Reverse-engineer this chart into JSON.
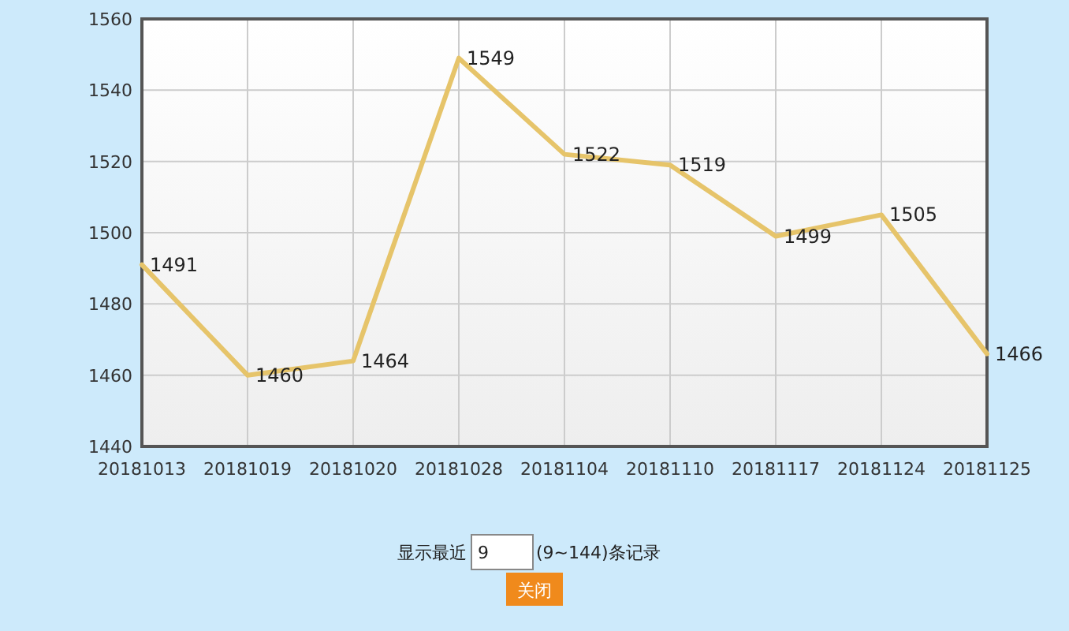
{
  "chart_data": {
    "type": "line",
    "categories": [
      "20181013",
      "20181019",
      "20181020",
      "20181028",
      "20181104",
      "20181110",
      "20181117",
      "20181124",
      "20181125"
    ],
    "values": [
      1491,
      1460,
      1464,
      1549,
      1522,
      1519,
      1499,
      1505,
      1466
    ],
    "color": "#e6c46a",
    "ylim": [
      1440,
      1560
    ],
    "yticks": [
      1440,
      1460,
      1480,
      1500,
      1520,
      1540,
      1560
    ],
    "grid": true,
    "data_labels": true,
    "annotations": [
      "显示最近",
      "9",
      "(9~144)条记录",
      "关闭"
    ]
  }
}
